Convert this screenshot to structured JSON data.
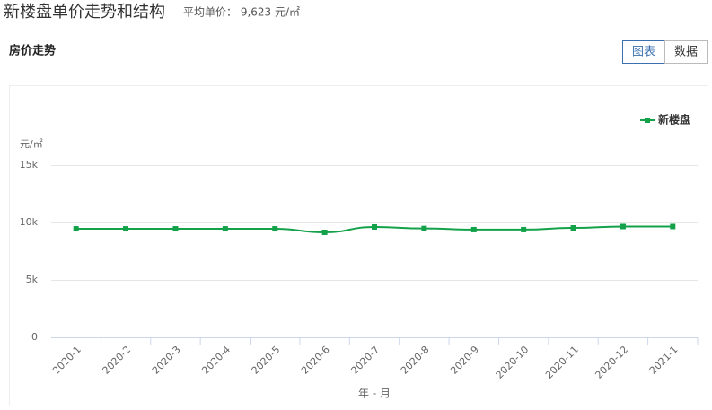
{
  "header": {
    "title": "新楼盘单价走势和结构",
    "average": "平均单价： 9,623 元/㎡"
  },
  "section_title": "房价走势",
  "tabs": [
    "图表",
    "数据"
  ],
  "chart_data": {
    "type": "line",
    "y_label": "元/㎡",
    "x_label": "年 - 月",
    "categories": [
      "2020-1",
      "2020-2",
      "2020-3",
      "2020-4",
      "2020-5",
      "2020-6",
      "2020-7",
      "2020-8",
      "2020-9",
      "2020-10",
      "2020-11",
      "2020-12",
      "2021-1"
    ],
    "series": [
      {
        "name": "新楼盘",
        "color": "#13a24a",
        "values": [
          9450,
          9450,
          9450,
          9450,
          9450,
          9140,
          9610,
          9480,
          9380,
          9380,
          9530,
          9650,
          9650
        ]
      }
    ],
    "ylim": [
      0,
      15000
    ],
    "yticks": [
      0,
      {
        "value": 5000,
        "label": "5k"
      },
      {
        "value": 10000,
        "label": "10k"
      },
      {
        "value": 15000,
        "label": "15k"
      }
    ],
    "grid": true,
    "legend": "top-right"
  }
}
